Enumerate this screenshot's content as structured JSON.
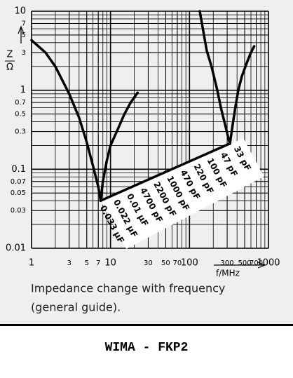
{
  "chart_data": {
    "type": "line",
    "ylabel": "Z",
    "ylabel_unit": "Ω",
    "xlabel": "f/MHz",
    "xscale": "log",
    "yscale": "log",
    "xlim": [
      1,
      1000
    ],
    "ylim": [
      0.01,
      10
    ],
    "xticks": [
      1,
      3,
      5,
      7,
      10,
      30,
      50,
      70,
      100,
      300,
      500,
      700,
      1000
    ],
    "yticks": [
      0.01,
      0.03,
      0.05,
      0.07,
      0.1,
      0.3,
      0.5,
      0.7,
      1,
      3,
      5,
      7,
      10
    ],
    "grid": true,
    "minor_grid": true,
    "series": [
      {
        "color": "#000000",
        "x": [
          1,
          1.5,
          2,
          3,
          4,
          5,
          6,
          7,
          7.5
        ],
        "values": [
          4.3,
          3.0,
          2.0,
          0.9,
          0.45,
          0.22,
          0.11,
          0.06,
          0.04
        ]
      },
      {
        "color": "#000000",
        "x": [
          7.5,
          8,
          9,
          10,
          12,
          15,
          18,
          22
        ],
        "values": [
          0.04,
          0.07,
          0.13,
          0.2,
          0.3,
          0.5,
          0.7,
          0.93
        ]
      },
      {
        "color": "#000000",
        "x": [
          135,
          165,
          190,
          225,
          250,
          280,
          310,
          325
        ],
        "values": [
          10,
          3.2,
          2.0,
          1.0,
          0.6,
          0.38,
          0.25,
          0.21
        ]
      },
      {
        "color": "#000000",
        "x": [
          325,
          350,
          380,
          415,
          460,
          530,
          600,
          660
        ],
        "values": [
          0.21,
          0.35,
          0.6,
          1.0,
          1.5,
          2.2,
          3.0,
          3.6
        ]
      },
      {
        "color": "#000000",
        "x": [
          7.5,
          320
        ],
        "values": [
          0.04,
          0.21
        ]
      }
    ],
    "annotations": [
      "0.033 µF",
      "0.022 µF",
      "0.01 µF",
      "4700 pF",
      "2200 pF",
      "1000 pF",
      "470 pF",
      "220 pF",
      "100 pF",
      "47 pF",
      "33 pF"
    ],
    "caption": [
      "Impedance change with frequency",
      "(general guide)."
    ]
  },
  "footer": "WIMA - FKP2"
}
